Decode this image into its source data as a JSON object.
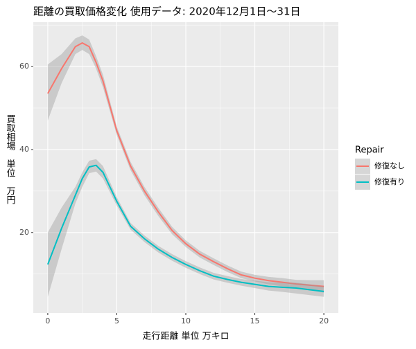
{
  "chart_data": {
    "type": "line",
    "title": "距離の買取価格変化 使用データ: 2020年12月1日～31日",
    "x_label": "走行距離 単位 万キロ",
    "y_label": "買取相場　単位　万円",
    "legend_title": "Repair",
    "x": [
      0,
      1,
      2,
      2.5,
      3,
      3.5,
      4,
      5,
      6,
      7,
      8,
      9,
      10,
      11,
      12,
      13,
      14,
      15,
      16,
      17,
      18,
      19,
      20
    ],
    "series": [
      {
        "name": "修復なし",
        "color": "#F8766D",
        "values": [
          53.5,
          59.5,
          64.8,
          65.7,
          64.8,
          61,
          56.5,
          44.5,
          36,
          30,
          25,
          20.5,
          17.3,
          14.8,
          13,
          11.3,
          9.8,
          9,
          8.4,
          8,
          7.6,
          7.3,
          7
        ],
        "lower": [
          47,
          56,
          63,
          64,
          63,
          59.5,
          55,
          43.5,
          35,
          29,
          24,
          19.6,
          16.5,
          14,
          12.2,
          10.5,
          9,
          8.2,
          7.5,
          7,
          6.6,
          6.1,
          5.5
        ],
        "upper": [
          60.5,
          63,
          66.8,
          67.5,
          66.5,
          62.5,
          58,
          45.5,
          37,
          31,
          26,
          21.4,
          18.1,
          15.6,
          13.8,
          12.1,
          10.6,
          9.8,
          9.3,
          9,
          8.6,
          8.5,
          8.5
        ]
      },
      {
        "name": "修復有り",
        "color": "#00BFC4",
        "values": [
          12.3,
          21,
          29,
          33,
          35.8,
          36.2,
          34.5,
          27.5,
          21.5,
          18.5,
          16,
          14,
          12.3,
          10.8,
          9.5,
          8.7,
          8,
          7.5,
          7,
          6.8,
          6.6,
          6.2,
          5.8
        ],
        "lower": [
          4.5,
          16,
          27,
          31,
          34.3,
          34.7,
          33,
          26.5,
          20.7,
          17.7,
          15.2,
          13.2,
          11.5,
          10,
          8.7,
          7.9,
          7.2,
          6.6,
          6,
          5.7,
          5.3,
          4.9,
          4.5
        ],
        "upper": [
          20,
          26,
          31,
          34.5,
          37.3,
          37.7,
          36,
          28.5,
          22.3,
          19.3,
          16.8,
          14.8,
          13.1,
          11.6,
          10.3,
          9.5,
          8.8,
          8.4,
          8,
          7.9,
          7.9,
          7.5,
          7
        ]
      }
    ],
    "band_color": "#999999",
    "xlim": [
      -1.05,
      21.05
    ],
    "ylim": [
      0.6,
      70.7
    ],
    "xticks": [
      0,
      5,
      10,
      15,
      20
    ],
    "yticks": [
      20,
      40,
      60
    ],
    "x_minor_grid": [
      2.5,
      7.5,
      12.5,
      17.5
    ],
    "y_minor_grid": [
      10,
      30,
      50,
      70
    ],
    "grid": true,
    "legend_position": "right"
  }
}
